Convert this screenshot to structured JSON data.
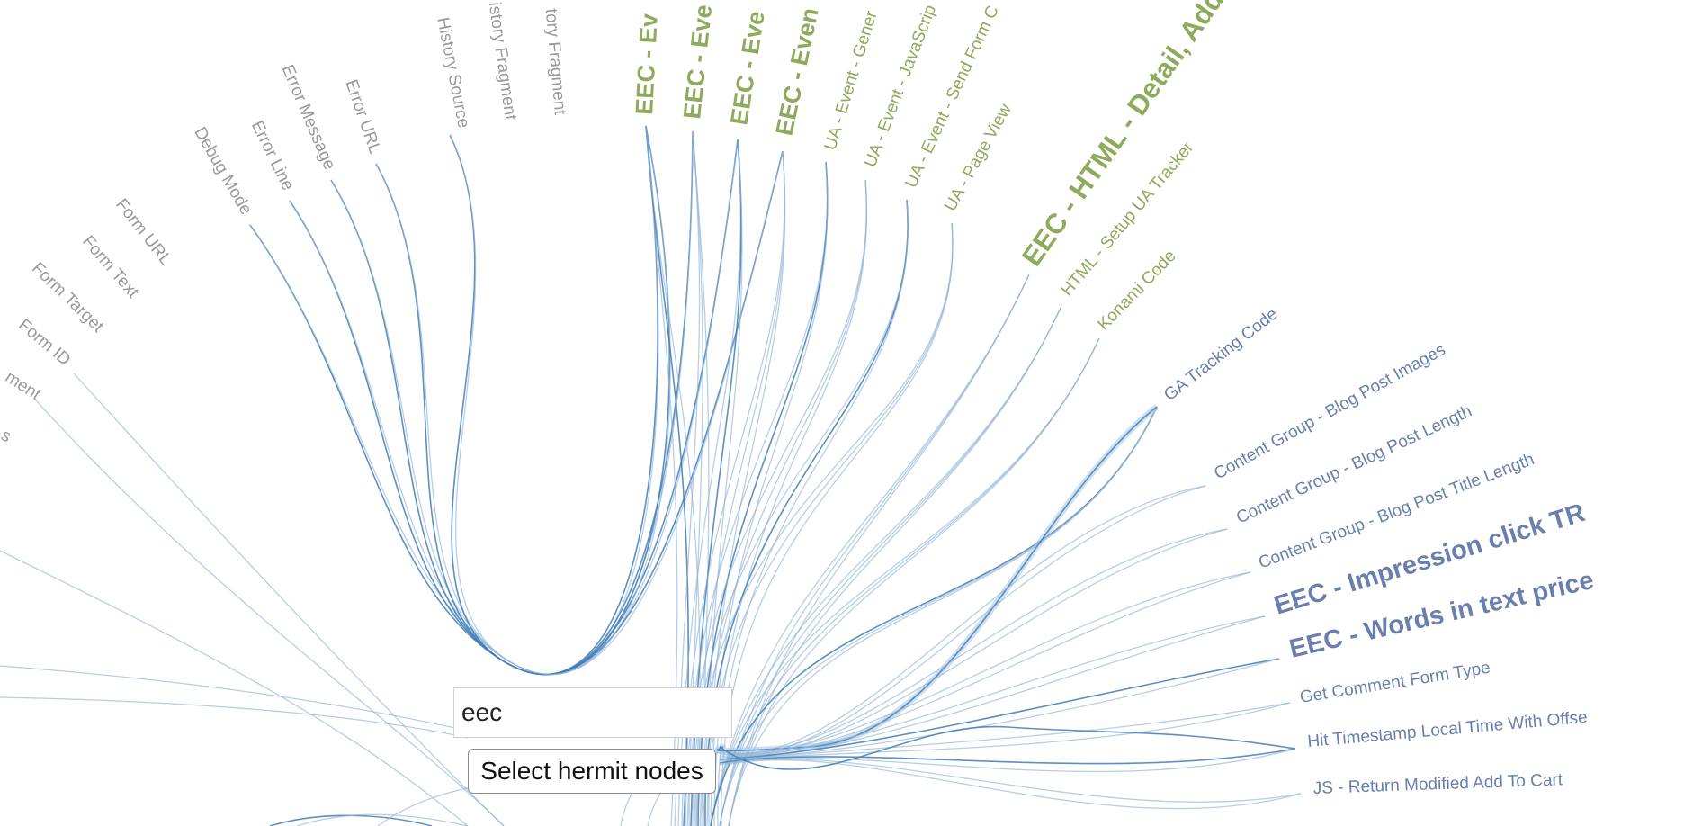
{
  "colors": {
    "link": "#8fb3d6",
    "link_dark": "#3f7cb8",
    "label_gray": "#9a9a9a",
    "label_green": "#8faa5d",
    "label_blue": "#6a7fae"
  },
  "search": {
    "value": "eec",
    "placeholder": ""
  },
  "hermit_button": {
    "label": "Select hermit nodes"
  },
  "nodes": [
    {
      "id": "n1",
      "label": "ment",
      "color": "gray",
      "bold": false
    },
    {
      "id": "n2",
      "label": "s",
      "color": "gray",
      "bold": false
    },
    {
      "id": "n3",
      "label": "Form ID",
      "color": "gray",
      "bold": false
    },
    {
      "id": "n4",
      "label": "Form Target",
      "color": "gray",
      "bold": false
    },
    {
      "id": "n5",
      "label": "Form Text",
      "color": "gray",
      "bold": false
    },
    {
      "id": "n6",
      "label": "Form URL",
      "color": "gray",
      "bold": false
    },
    {
      "id": "n7",
      "label": "Debug Mode",
      "color": "gray",
      "bold": false
    },
    {
      "id": "n8",
      "label": "Error Line",
      "color": "gray",
      "bold": false
    },
    {
      "id": "n9",
      "label": "Error Message",
      "color": "gray",
      "bold": false
    },
    {
      "id": "n10",
      "label": "Error URL",
      "color": "gray",
      "bold": false
    },
    {
      "id": "n11",
      "label": "History Source",
      "color": "gray",
      "bold": false
    },
    {
      "id": "n12",
      "label": "istory Fragment",
      "color": "gray",
      "bold": false
    },
    {
      "id": "n13",
      "label": "tory Fragment",
      "color": "gray",
      "bold": false
    },
    {
      "id": "n14",
      "label": "EEC - Ev",
      "color": "green",
      "bold": true
    },
    {
      "id": "n15",
      "label": "EEC - Eve",
      "color": "green",
      "bold": true
    },
    {
      "id": "n16",
      "label": "EEC - Eve",
      "color": "green",
      "bold": true
    },
    {
      "id": "n17",
      "label": "EEC - Even",
      "color": "green",
      "bold": true
    },
    {
      "id": "n18",
      "label": "UA - Event - Gener",
      "color": "green",
      "bold": false
    },
    {
      "id": "n19",
      "label": "UA - Event - JavaScrip",
      "color": "green",
      "bold": false
    },
    {
      "id": "n20",
      "label": "UA - Event - Send Form C",
      "color": "green",
      "bold": false
    },
    {
      "id": "n21",
      "label": "UA - Page View",
      "color": "green",
      "bold": false
    },
    {
      "id": "n22",
      "label": "EEC - HTML - Detail, Add t",
      "color": "green",
      "bold": true
    },
    {
      "id": "n23",
      "label": "HTML - Setup UA Tracker",
      "color": "green",
      "bold": false
    },
    {
      "id": "n24",
      "label": "Konami Code",
      "color": "green",
      "bold": false
    },
    {
      "id": "n25",
      "label": "GA Tracking Code",
      "color": "blue",
      "bold": false
    },
    {
      "id": "n26",
      "label": "Content Group - Blog Post Images",
      "color": "blue",
      "bold": false
    },
    {
      "id": "n27",
      "label": "Content Group - Blog Post Length",
      "color": "blue",
      "bold": false
    },
    {
      "id": "n28",
      "label": "Content Group - Blog Post Title Length",
      "color": "blue",
      "bold": false
    },
    {
      "id": "n29",
      "label": "EEC - Impression click TR",
      "color": "blue",
      "bold": true
    },
    {
      "id": "n30",
      "label": "EEC - Words in text price",
      "color": "blue",
      "bold": true
    },
    {
      "id": "n31",
      "label": "Get Comment Form Type",
      "color": "blue",
      "bold": false
    },
    {
      "id": "n32",
      "label": "Hit Timestamp Local Time With Offse",
      "color": "blue",
      "bold": false
    },
    {
      "id": "n33",
      "label": "JS - Return Modified Add To Cart",
      "color": "blue",
      "bold": false
    }
  ]
}
